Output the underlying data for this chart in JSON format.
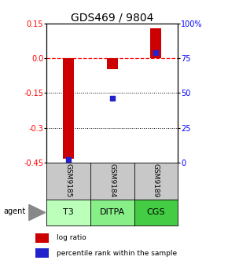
{
  "title": "GDS469 / 9804",
  "samples": [
    "GSM9185",
    "GSM9184",
    "GSM9189"
  ],
  "agents": [
    "T3",
    "DITPA",
    "CGS"
  ],
  "log_ratios": [
    -0.435,
    -0.045,
    0.13
  ],
  "percentile_ranks": [
    2.0,
    46.0,
    79.0
  ],
  "ylim": [
    -0.45,
    0.15
  ],
  "yticks_left": [
    0.15,
    0.0,
    -0.15,
    -0.3,
    -0.45
  ],
  "yticks_right_pct": [
    100,
    75,
    50,
    25,
    0
  ],
  "dotted_lines": [
    -0.15,
    -0.3
  ],
  "bar_width": 0.25,
  "bar_color": "#cc0000",
  "dot_color": "#2222cc",
  "bar_positions": [
    1,
    2,
    3
  ],
  "gsm_bg_color": "#c8c8c8",
  "agent_bg_colors": [
    "#bbffbb",
    "#88ee88",
    "#44cc44"
  ],
  "legend_bar_color": "#cc0000",
  "legend_dot_color": "#2222cc",
  "title_fontsize": 10,
  "tick_fontsize": 7,
  "sample_fontsize": 6.5,
  "agent_fontsize": 8
}
